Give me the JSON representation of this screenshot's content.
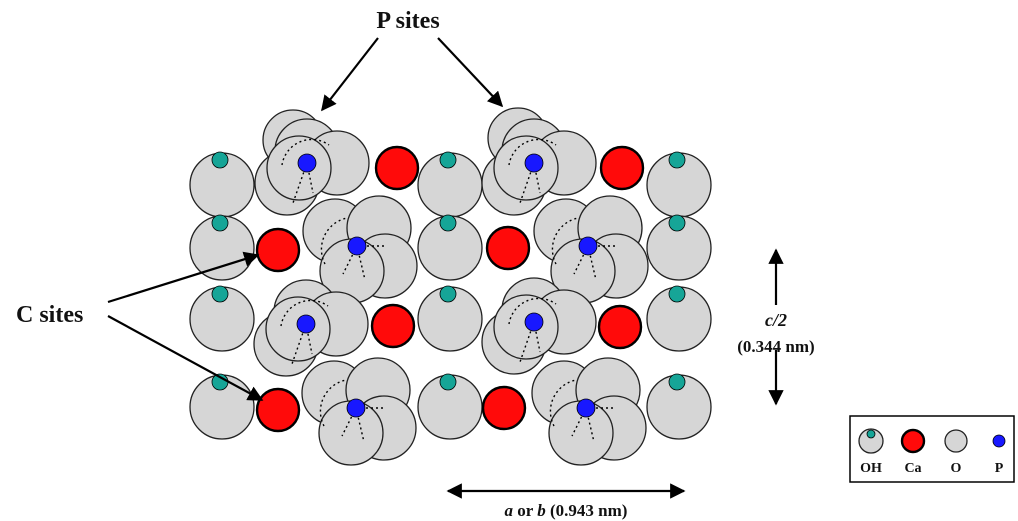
{
  "labels": {
    "p_sites": "P sites",
    "c_sites": "C sites",
    "c_axis_top": "c/2",
    "c_axis_bottom": "(0.344 nm)",
    "a_axis_italic": "a",
    "a_axis_or": " or ",
    "b_axis_italic": "b",
    "a_axis_value": " (0.943 nm)"
  },
  "legend": {
    "items": [
      {
        "label": "OH",
        "icon": "oh-icon"
      },
      {
        "label": "Ca",
        "icon": "ca-icon"
      },
      {
        "label": "O",
        "icon": "o-icon"
      },
      {
        "label": "P",
        "icon": "p-icon"
      }
    ]
  },
  "colors": {
    "oxygen": "#d6d6d6",
    "calcium": "#ff0a0a",
    "phosphorus": "#1818ff",
    "hydroxyl": "#16a597"
  }
}
